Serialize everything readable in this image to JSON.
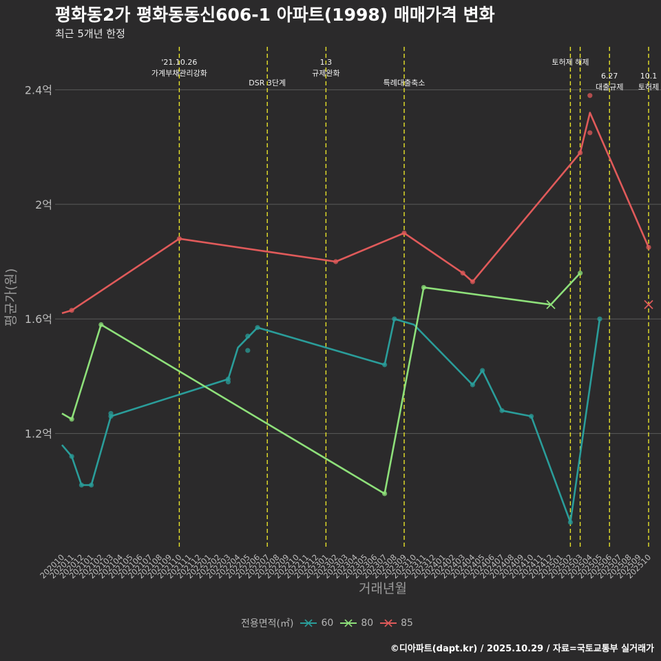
{
  "title": "평화동2가 평화동동신606-1 아파트(1998) 매매가격 변화",
  "subtitle": "최근 5개년 한정",
  "footer": "©디아파트(dapt.kr) / 2025.10.29 / 자료=국토교통부 실거래가",
  "colors": {
    "s60": "#2a9d9a",
    "s80": "#8ee07a",
    "s85": "#e05a5a",
    "vline": "#e8e32a",
    "grid": "#5a5a5a",
    "axis_text": "#bdbdbd"
  },
  "chart_data": {
    "type": "line",
    "xlabel": "거래년월",
    "ylabel": "평균가(원)",
    "ylim": [
      0.8,
      2.55
    ],
    "yticks": [
      {
        "value": 1.2,
        "label": "1.2억"
      },
      {
        "value": 1.6,
        "label": "1.6억"
      },
      {
        "value": 2.0,
        "label": "2억"
      },
      {
        "value": 2.4,
        "label": "2.4억"
      }
    ],
    "categories": [
      "202010",
      "202011",
      "202012",
      "202101",
      "202102",
      "202103",
      "202104",
      "202105",
      "202106",
      "202107",
      "202108",
      "202109",
      "202110",
      "202111",
      "202112",
      "202201",
      "202202",
      "202203",
      "202204",
      "202205",
      "202206",
      "202207",
      "202208",
      "202209",
      "202210",
      "202211",
      "202212",
      "202301",
      "202302",
      "202303",
      "202304",
      "202305",
      "202306",
      "202307",
      "202308",
      "202309",
      "202310",
      "202311",
      "202312",
      "202401",
      "202402",
      "202403",
      "202404",
      "202405",
      "202406",
      "202407",
      "202408",
      "202409",
      "202410",
      "202411",
      "202412",
      "202501",
      "202502",
      "202503",
      "202504",
      "202505",
      "202506",
      "202507",
      "202508",
      "202509",
      "202510"
    ],
    "legend_title": "전용면적(㎡)",
    "series": [
      {
        "name": "60",
        "color_key": "s60",
        "line": [
          [
            0,
            1.16
          ],
          [
            1,
            1.12
          ],
          [
            2,
            1.02
          ],
          [
            3,
            1.02
          ],
          [
            5,
            1.26
          ],
          [
            17,
            1.39
          ],
          [
            18,
            1.5
          ],
          [
            20,
            1.57
          ],
          [
            33,
            1.44
          ],
          [
            34,
            1.6
          ],
          [
            36,
            1.58
          ],
          [
            42,
            1.37
          ],
          [
            43,
            1.42
          ],
          [
            45,
            1.28
          ],
          [
            48,
            1.26
          ],
          [
            52,
            0.89
          ],
          [
            55,
            1.6
          ]
        ],
        "points": [
          [
            1,
            1.12
          ],
          [
            2,
            1.02
          ],
          [
            3,
            1.02
          ],
          [
            5,
            1.27
          ],
          [
            5,
            1.26
          ],
          [
            17,
            1.38
          ],
          [
            17,
            1.39
          ],
          [
            19,
            1.54
          ],
          [
            19,
            1.49
          ],
          [
            20,
            1.57
          ],
          [
            33,
            1.44
          ],
          [
            34,
            1.6
          ],
          [
            42,
            1.37
          ],
          [
            43,
            1.42
          ],
          [
            45,
            1.28
          ],
          [
            48,
            1.26
          ],
          [
            52,
            0.89
          ],
          [
            55,
            1.6
          ]
        ],
        "x_markers": []
      },
      {
        "name": "80",
        "color_key": "s80",
        "line": [
          [
            0,
            1.27
          ],
          [
            1,
            1.25
          ],
          [
            4,
            1.58
          ],
          [
            33,
            0.99
          ],
          [
            37,
            1.71
          ],
          [
            50,
            1.65
          ],
          [
            53,
            1.76
          ]
        ],
        "points": [
          [
            1,
            1.25
          ],
          [
            4,
            1.58
          ],
          [
            33,
            0.99
          ],
          [
            37,
            1.71
          ],
          [
            53,
            1.76
          ]
        ],
        "x_markers": [
          [
            50,
            1.65
          ]
        ]
      },
      {
        "name": "85",
        "color_key": "s85",
        "line": [
          [
            0,
            1.62
          ],
          [
            1,
            1.63
          ],
          [
            12,
            1.88
          ],
          [
            28,
            1.8
          ],
          [
            35,
            1.9
          ],
          [
            41,
            1.76
          ],
          [
            42,
            1.73
          ],
          [
            53,
            2.18
          ],
          [
            54,
            2.32
          ],
          [
            60,
            1.85
          ]
        ],
        "points": [
          [
            1,
            1.63
          ],
          [
            12,
            1.88
          ],
          [
            28,
            1.8
          ],
          [
            35,
            1.9
          ],
          [
            41,
            1.76
          ],
          [
            42,
            1.73
          ],
          [
            53,
            2.18
          ],
          [
            54,
            2.38
          ],
          [
            54,
            2.25
          ],
          [
            60,
            1.85
          ]
        ],
        "x_markers": [
          [
            60,
            1.65
          ]
        ]
      }
    ],
    "events": [
      {
        "x": 12,
        "lines": [
          "'21.10.26",
          "가계부채관리강화"
        ],
        "row": 0
      },
      {
        "x": 21,
        "lines": [
          "DSR 3단계"
        ],
        "row": 1
      },
      {
        "x": 27,
        "lines": [
          "1.3",
          "규제완화"
        ],
        "row": 0
      },
      {
        "x": 35,
        "lines": [
          "특례대출축소"
        ],
        "row": 1
      },
      {
        "x": 52,
        "lines": [
          "토허제 해제"
        ],
        "row": 0
      },
      {
        "x": 53,
        "lines": [],
        "row": 0
      },
      {
        "x": 56,
        "lines": [
          "6.27",
          "대출규제"
        ],
        "row": 2
      },
      {
        "x": 60,
        "lines": [
          "10.1",
          "토허제"
        ],
        "row": 2
      }
    ]
  }
}
